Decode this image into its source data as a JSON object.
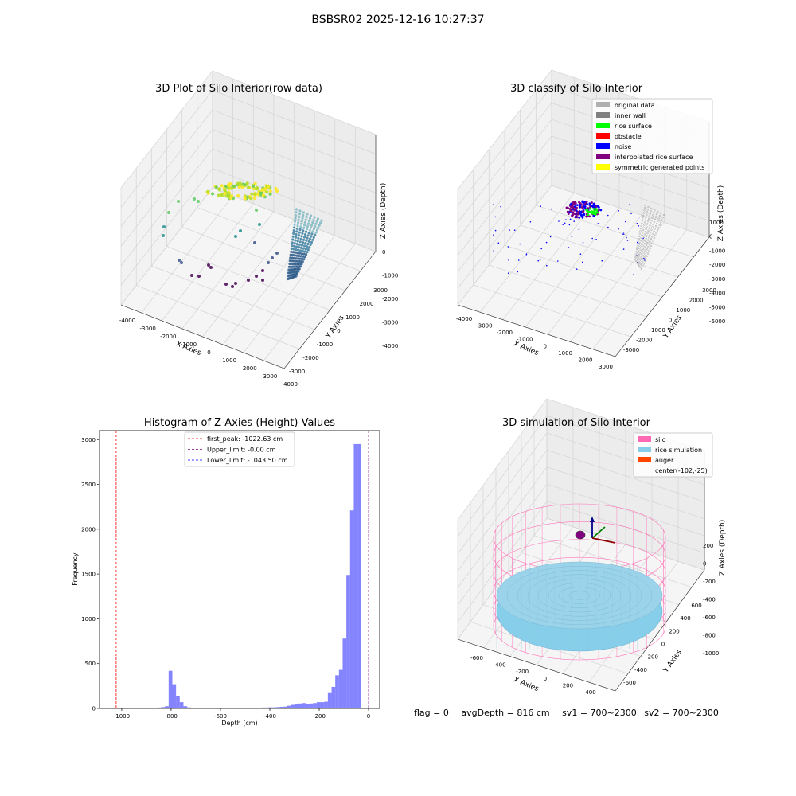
{
  "figure": {
    "suptitle": "BSBSR02 2025-12-16 10:27:37"
  },
  "status": {
    "flag": "flag = 0",
    "avg_depth": "avgDepth = 816 cm",
    "sv1": "sv1 = 700~2300",
    "sv2": "sv2 = 700~2300"
  },
  "colors": {
    "hist_bar": "#5050ff",
    "first_peak": "#ff0000",
    "upper_limit": "#800080",
    "lower_limit": "#0000ff",
    "original_data": "#b0b0b0",
    "inner_wall": "#808080",
    "rice_surface": "#00ff00",
    "obstacle": "#ff0000",
    "noise": "#0000ff",
    "interpolated_rice_surface": "#800080",
    "symmetric_generated_points": "#ffff00",
    "silo": "#ff69b4",
    "rice_simulation": "#87ceeb",
    "auger": "#ff4500"
  },
  "chart_data": [
    {
      "type": "scatter",
      "subtype": "3d",
      "title": "3D Plot of Silo Interior(row data)",
      "xlabel": "X Axies",
      "ylabel": "Y Axies",
      "zlabel": "Z Axies (Depth)",
      "x_ticks": [
        "-4000",
        "-3000",
        "-2000",
        "-1000",
        "0",
        "1000",
        "2000",
        "3000",
        "4000"
      ],
      "y_ticks": [
        "-3000",
        "-2000",
        "-1000",
        "0",
        "1000",
        "2000",
        "3000"
      ],
      "z_ticks": [
        "0",
        "-1000",
        "-2000",
        "-3000",
        "-4000"
      ],
      "colormap": "viridis",
      "grid": true
    },
    {
      "type": "scatter",
      "subtype": "3d",
      "title": "3D classify of Silo Interior",
      "x_ticks": [
        "-4000",
        "-3000",
        "-2000",
        "-1000",
        "0",
        "1000",
        "2000",
        "3000"
      ],
      "y_ticks": [
        "-3000",
        "-2000",
        "-1000",
        "0",
        "1000",
        "2000",
        "3000"
      ],
      "z_ticks": [
        "1000",
        "0",
        "-1000",
        "-2000",
        "-3000",
        "-4000",
        "-5000",
        "-6000"
      ],
      "xlabel": "X Axies",
      "ylabel": "Y Axies",
      "zlabel": "Z Axies (Depth)",
      "legend": [
        {
          "label": "original data",
          "color": "#b0b0b0"
        },
        {
          "label": "inner wall",
          "color": "#808080"
        },
        {
          "label": "rice surface",
          "color": "#00ff00"
        },
        {
          "label": "obstacle",
          "color": "#ff0000"
        },
        {
          "label": "noise",
          "color": "#0000ff"
        },
        {
          "label": "interpolated rice surface",
          "color": "#800080"
        },
        {
          "label": "symmetric generated points",
          "color": "#ffff00"
        }
      ],
      "legend_position": "top-right",
      "grid": true
    },
    {
      "type": "bar",
      "subtype": "histogram",
      "title": "Histogram of Z-Axies (Height) Values",
      "xlabel": "Depth (cm)",
      "ylabel": "Frequency",
      "xlim": [
        -1090,
        45
      ],
      "ylim": [
        0,
        3100
      ],
      "x_ticks": [
        -1000,
        -800,
        -600,
        -400,
        -200,
        0
      ],
      "y_ticks": [
        0,
        500,
        1000,
        1500,
        2000,
        2500,
        3000
      ],
      "bin_width": 15,
      "bins": [
        [
          -900,
          2
        ],
        [
          -885,
          4
        ],
        [
          -870,
          6
        ],
        [
          -855,
          10
        ],
        [
          -840,
          15
        ],
        [
          -825,
          25
        ],
        [
          -810,
          420
        ],
        [
          -795,
          270
        ],
        [
          -780,
          140
        ],
        [
          -765,
          70
        ],
        [
          -750,
          25
        ],
        [
          -735,
          12
        ],
        [
          -720,
          8
        ],
        [
          -705,
          5
        ],
        [
          -690,
          3
        ],
        [
          -675,
          2
        ],
        [
          -660,
          2
        ],
        [
          -645,
          2
        ],
        [
          -630,
          2
        ],
        [
          -615,
          3
        ],
        [
          -600,
          4
        ],
        [
          -585,
          4
        ],
        [
          -570,
          3
        ],
        [
          -555,
          4
        ],
        [
          -540,
          5
        ],
        [
          -525,
          5
        ],
        [
          -510,
          6
        ],
        [
          -495,
          7
        ],
        [
          -480,
          8
        ],
        [
          -465,
          6
        ],
        [
          -450,
          8
        ],
        [
          -435,
          10
        ],
        [
          -420,
          10
        ],
        [
          -405,
          12
        ],
        [
          -390,
          12
        ],
        [
          -375,
          15
        ],
        [
          -360,
          18
        ],
        [
          -345,
          20
        ],
        [
          -330,
          30
        ],
        [
          -315,
          40
        ],
        [
          -300,
          50
        ],
        [
          -285,
          55
        ],
        [
          -270,
          60
        ],
        [
          -255,
          50
        ],
        [
          -240,
          55
        ],
        [
          -225,
          60
        ],
        [
          -210,
          70
        ],
        [
          -195,
          70
        ],
        [
          -180,
          75
        ],
        [
          -165,
          180
        ],
        [
          -150,
          240
        ],
        [
          -135,
          370
        ],
        [
          -120,
          430
        ],
        [
          -105,
          780
        ],
        [
          -90,
          1490
        ],
        [
          -75,
          2210
        ],
        [
          -60,
          2950
        ],
        [
          -45,
          2950
        ]
      ],
      "vlines": [
        {
          "label": "first_peak: -1022.63 cm",
          "x": -1022.63,
          "color": "#ff0000"
        },
        {
          "label": "Upper_limit: -0.00 cm",
          "x": -0.0,
          "color": "#800080"
        },
        {
          "label": "Lower_limit: -1043.50 cm",
          "x": -1043.5,
          "color": "#0000ff"
        }
      ],
      "legend_position": "top-center",
      "grid": false
    },
    {
      "type": "scatter",
      "subtype": "3d",
      "title": "3D simulation of Silo Interior",
      "xlabel": "X Axies",
      "ylabel": "Y Axies",
      "zlabel": "Z Axies (Depth)",
      "x_ticks": [
        "-600",
        "-400",
        "-200",
        "0",
        "200",
        "400"
      ],
      "y_ticks": [
        "-600",
        "-400",
        "-200",
        "0",
        "200",
        "400",
        "600"
      ],
      "z_ticks": [
        "200",
        "0",
        "-200",
        "-400",
        "-600",
        "-800",
        "-1000"
      ],
      "legend": [
        {
          "label": "silo",
          "color": "#ff69b4"
        },
        {
          "label": "rice simulation",
          "color": "#87ceeb"
        },
        {
          "label": "auger",
          "color": "#ff4500"
        },
        {
          "label": "center(-102,-25)",
          "color": ""
        }
      ],
      "legend_position": "top-right",
      "grid": true
    }
  ]
}
